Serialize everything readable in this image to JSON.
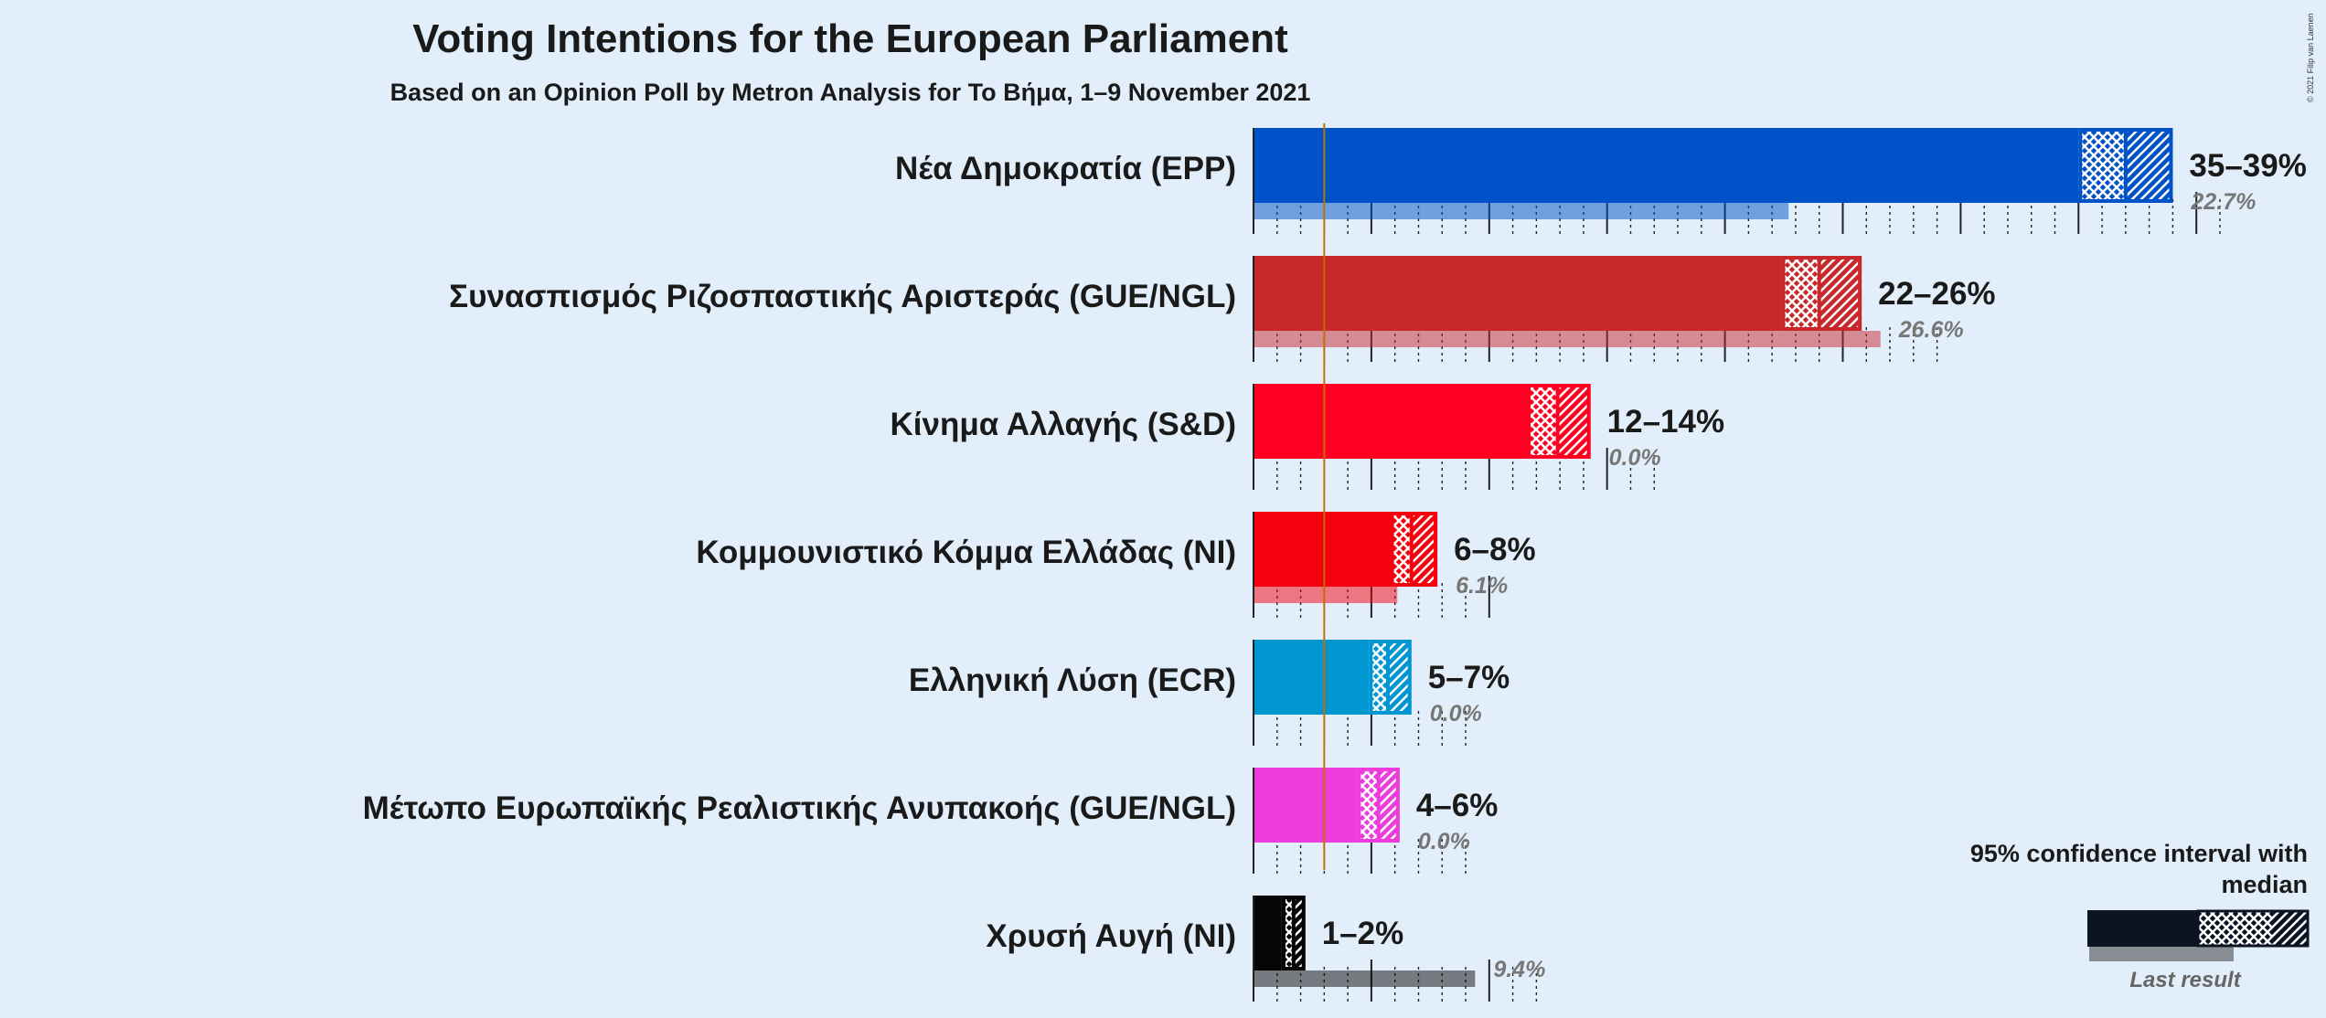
{
  "header": {
    "title": "Voting Intentions for the European Parliament",
    "subtitle": "Based on an Opinion Poll by Metron Analysis for To Βήμα, 1–9 November 2021",
    "copyright": "© 2021 Filip van Laenen"
  },
  "legend": {
    "title": "95% confidence interval with median",
    "last_result": "Last result"
  },
  "chart_data": {
    "type": "bar",
    "orientation": "horizontal",
    "x_unit": "%",
    "threshold": 3,
    "categories": [
      "Νέα Δημοκρατία (EPP)",
      "Συνασπισμός Ριζοσπαστικής Αριστεράς (GUE/NGL)",
      "Κίνημα Αλλαγής (S&D)",
      "Κομμουνιστικό Κόμμα Ελλάδας (NI)",
      "Ελληνική Λύση (ECR)",
      "Μέτωπο Ευρωπαϊκής Ρεαλιστικής Ανυπακοής (GUE/NGL)",
      "Χρυσή Αυγή (NI)"
    ],
    "parties": [
      {
        "name": "Νέα Δημοκρατία (EPP)",
        "low": 35,
        "median": 37,
        "high": 39,
        "range_label": "35–39%",
        "last": 22.7,
        "last_label": "22.7%",
        "color": "#0052c8"
      },
      {
        "name": "Συνασπισμός Ριζοσπαστικής Αριστεράς (GUE/NGL)",
        "low": 22.4,
        "median": 24,
        "high": 25.8,
        "range_label": "22–26%",
        "last": 26.6,
        "last_label": "26.6%",
        "color": "#c8282b"
      },
      {
        "name": "Κίνημα Αλλαγής (S&D)",
        "low": 11.6,
        "median": 12.9,
        "high": 14.3,
        "range_label": "12–14%",
        "last": 0,
        "last_label": "0.0%",
        "color": "#ff0022"
      },
      {
        "name": "Κομμουνιστικό Κόμμα Ελλάδας (NI)",
        "low": 5.8,
        "median": 6.7,
        "high": 7.8,
        "range_label": "6–8%",
        "last": 6.1,
        "last_label": "6.1%",
        "color": "#f5000c"
      },
      {
        "name": "Ελληνική Λύση (ECR)",
        "low": 4.9,
        "median": 5.7,
        "high": 6.7,
        "range_label": "5–7%",
        "last": 0,
        "last_label": "0.0%",
        "color": "#0096d2"
      },
      {
        "name": "Μέτωπο Ευρωπαϊκής Ρεαλιστικής Ανυπακοής (GUE/NGL)",
        "low": 4.4,
        "median": 5.3,
        "high": 6.2,
        "range_label": "4–6%",
        "last": 0,
        "last_label": "0.0%",
        "color": "#ee3bdc"
      },
      {
        "name": "Χρυσή Αυγή (NI)",
        "low": 1.2,
        "median": 1.7,
        "high": 2.2,
        "range_label": "1–2%",
        "last": 9.4,
        "last_label": "9.4%",
        "color": "#050505"
      }
    ]
  }
}
